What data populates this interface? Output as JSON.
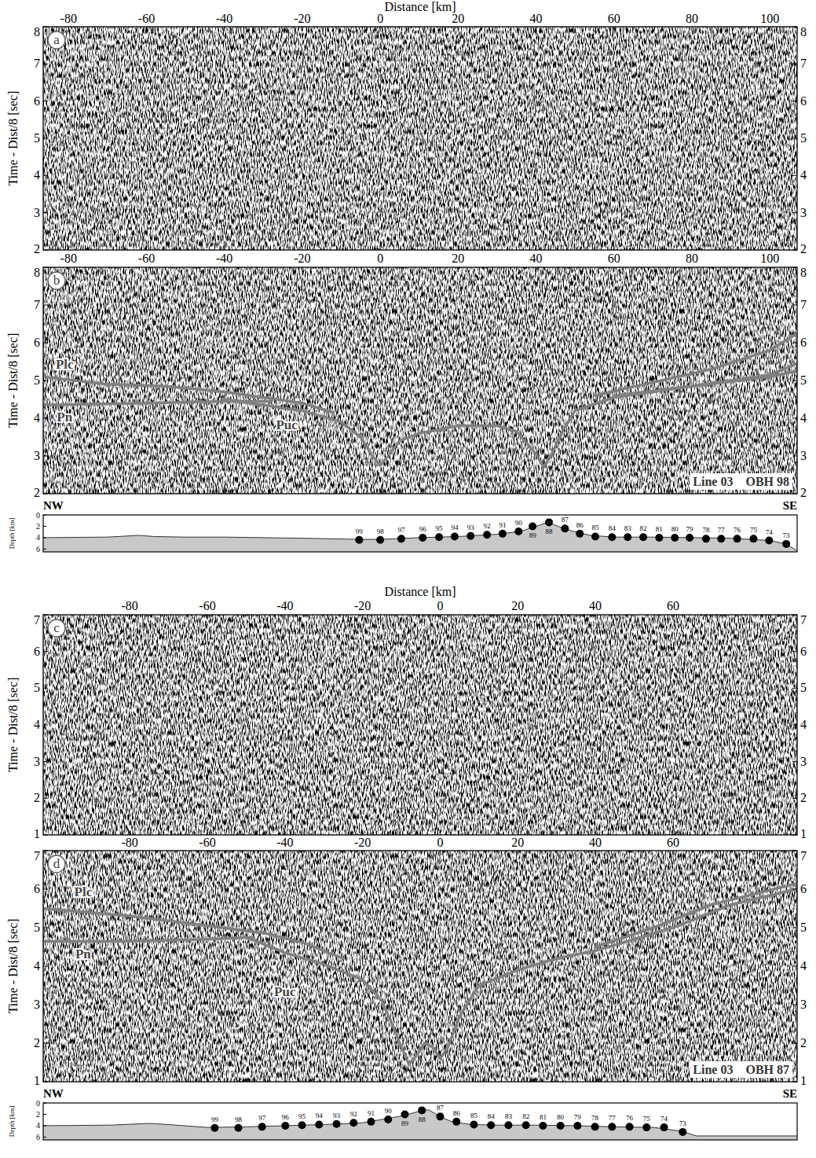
{
  "chart_data": [
    {
      "type": "seismic_section",
      "panel_label": "a",
      "xlabel": "Distance [km]",
      "ylabel": "Time - Dist/8 [sec]",
      "xlim": [
        -86.5,
        107
      ],
      "ylim": [
        2,
        8
      ],
      "xticks": [
        -80,
        -60,
        -40,
        -20,
        0,
        20,
        40,
        60,
        80,
        100
      ],
      "yticks": [
        2,
        3,
        4,
        5,
        6,
        7,
        8
      ]
    },
    {
      "type": "seismic_section",
      "panel_label": "b",
      "ylabel": "Time - Dist/8 [sec]",
      "station_label": "Line 03    OBH 98",
      "xlim": [
        -86.5,
        107
      ],
      "ylim": [
        2,
        8
      ],
      "xticks": [
        -80,
        -60,
        -40,
        -20,
        0,
        20,
        40,
        60,
        80,
        100
      ],
      "yticks": [
        2,
        3,
        4,
        5,
        6,
        7,
        8
      ],
      "series": [
        {
          "color": "#808080",
          "x": [
            -86.5,
            -70,
            -55,
            -40,
            -30,
            -20,
            -12,
            20,
            55,
            70,
            85,
            100,
            107
          ],
          "values": [
            5.1,
            4.9,
            4.85,
            4.7,
            4.55,
            4.4,
            4.15,
            null,
            4.6,
            4.95,
            5.3,
            5.8,
            6.25
          ]
        },
        {
          "color": "#808080",
          "x": [
            -86.5,
            -60,
            -40,
            -28,
            0,
            60,
            80,
            100,
            107
          ],
          "values": [
            4.35,
            4.4,
            4.45,
            4.45,
            null,
            4.6,
            4.85,
            5.15,
            5.45
          ]
        },
        {
          "color": "#808080",
          "x": [
            -40,
            -30,
            -20,
            -10,
            -5,
            -2,
            0,
            2,
            5,
            10,
            20,
            30,
            35,
            40,
            42,
            44,
            47,
            50,
            60,
            80,
            100,
            107
          ],
          "values": [
            4.5,
            4.35,
            4.2,
            3.9,
            3.5,
            3.0,
            2.75,
            3.0,
            3.4,
            3.6,
            3.8,
            3.8,
            3.65,
            3.05,
            2.7,
            3.05,
            3.7,
            4.2,
            4.55,
            4.85,
            5.1,
            5.25
          ]
        }
      ],
      "annotations": [
        {
          "text": "Plc",
          "x": -81,
          "y": 5.4
        },
        {
          "text": "Pn",
          "x": -81,
          "y": 4.0
        },
        {
          "text": "Puc",
          "x": -24,
          "y": 3.78
        }
      ]
    },
    {
      "type": "profile",
      "ylabel": "Depth [km]",
      "left_label": "NW",
      "right_label": "SE",
      "xlim": [
        -86.5,
        107
      ],
      "ylim": [
        0,
        6.5
      ],
      "yticks": [
        0,
        2,
        4,
        6
      ],
      "tick_labels": "y",
      "series": [
        {
          "type": "area",
          "color": "#c8c8c8",
          "x": [
            -86.5,
            -70,
            -62,
            -58,
            -50,
            -40,
            -20,
            -5,
            0,
            10,
            20,
            30,
            36,
            40,
            43,
            46,
            50,
            54,
            60,
            70,
            80,
            90,
            100,
            104,
            107
          ],
          "values": [
            4.0,
            3.9,
            3.6,
            3.8,
            3.9,
            3.9,
            4.1,
            4.3,
            4.3,
            4.0,
            3.8,
            3.4,
            2.9,
            2.0,
            1.3,
            2.1,
            3.0,
            3.6,
            3.9,
            3.9,
            4.0,
            4.1,
            4.5,
            5.1,
            6.3
          ]
        },
        {
          "type": "scatter",
          "marker": "circle",
          "color": "#000000",
          "labels": [
            "99",
            "98",
            "97",
            "96",
            "95",
            "94",
            "93",
            "92",
            "91",
            "90",
            "89",
            "88",
            "87",
            "86",
            "85",
            "84",
            "83",
            "82",
            "81",
            "80",
            "79",
            "78",
            "77",
            "76",
            "75",
            "74",
            "73"
          ],
          "x": [
            -5.4,
            0,
            5.4,
            10.9,
            15.1,
            19.1,
            23.2,
            27.4,
            31.4,
            35.5,
            39.1,
            43.3,
            47.4,
            51.2,
            55.2,
            59.5,
            63.5,
            67.5,
            71.6,
            75.6,
            79.4,
            83.6,
            87.5,
            91.6,
            95.8,
            99.8,
            104.2
          ],
          "values": [
            4.4,
            4.4,
            4.2,
            4.0,
            3.9,
            3.8,
            3.7,
            3.5,
            3.3,
            2.9,
            2.0,
            1.3,
            2.4,
            3.3,
            3.8,
            3.9,
            3.9,
            3.9,
            4.0,
            4.0,
            4.0,
            4.2,
            4.2,
            4.2,
            4.2,
            4.5,
            5.1
          ]
        }
      ]
    },
    {
      "type": "seismic_section",
      "panel_label": "c",
      "xlabel": "Distance [km]",
      "ylabel": "Time - Dist/8 [sec]",
      "xlim": [
        -102.3,
        92
      ],
      "ylim": [
        1,
        7
      ],
      "xticks": [
        -80,
        -60,
        -40,
        -20,
        0,
        20,
        40,
        60
      ],
      "yticks": [
        1,
        2,
        3,
        4,
        5,
        6,
        7
      ]
    },
    {
      "type": "seismic_section",
      "panel_label": "d",
      "ylabel": "Time - Dist/8 [sec]",
      "station_label": "Line 03    OBH 87",
      "xlim": [
        -102.3,
        92
      ],
      "ylim": [
        1,
        7
      ],
      "xticks": [
        -80,
        -60,
        -40,
        -20,
        0,
        20,
        40,
        60
      ],
      "yticks": [
        1,
        2,
        3,
        4,
        5,
        6,
        7
      ],
      "series": [
        {
          "color": "#808080",
          "x": [
            -102.3,
            -80,
            -60,
            -45,
            -35,
            -25,
            0,
            40,
            55,
            70,
            92
          ],
          "values": [
            5.5,
            5.3,
            5.05,
            4.85,
            4.6,
            4.2,
            null,
            4.5,
            5.0,
            5.6,
            6.15
          ]
        },
        {
          "color": "#808080",
          "x": [
            -102.3,
            -80,
            -60,
            -48,
            0,
            60,
            75,
            92
          ],
          "values": [
            4.65,
            4.65,
            4.7,
            4.75,
            null,
            5.0,
            5.6,
            6.0
          ]
        },
        {
          "color": "#808080",
          "x": [
            -50,
            -40,
            -30,
            -20,
            -15,
            -12,
            -10,
            -8,
            -6,
            -4,
            -2,
            0,
            2,
            5,
            10,
            20,
            30,
            40,
            50,
            60
          ],
          "values": [
            4.75,
            4.35,
            4.05,
            3.65,
            3.1,
            2.4,
            1.9,
            1.45,
            1.7,
            2.0,
            1.9,
            1.6,
            1.9,
            2.7,
            3.5,
            3.9,
            4.2,
            4.4,
            4.7,
            5.0
          ]
        }
      ],
      "annotations": [
        {
          "text": "Plc",
          "x": -92,
          "y": 5.9
        },
        {
          "text": "Pn",
          "x": -92,
          "y": 4.28
        },
        {
          "text": "Puc",
          "x": -40,
          "y": 3.3
        }
      ]
    },
    {
      "type": "profile",
      "ylabel": "Depth [km]",
      "left_label": "NW",
      "right_label": "SE",
      "xlim": [
        -102.3,
        92
      ],
      "ylim": [
        0,
        6.5
      ],
      "yticks": [
        0,
        2,
        4,
        6
      ],
      "tick_labels": "y",
      "series": [
        {
          "type": "area",
          "color": "#c8c8c8",
          "x": [
            -102.3,
            -85,
            -75,
            -70,
            -60,
            -50,
            -40,
            -30,
            -20,
            -10,
            -5,
            -3,
            0,
            3,
            8,
            15,
            25,
            35,
            45,
            55,
            62.5,
            66,
            70,
            92
          ],
          "values": [
            4.0,
            3.9,
            3.6,
            3.8,
            4.3,
            4.2,
            4.0,
            3.8,
            3.5,
            2.3,
            1.4,
            1.2,
            2.4,
            3.3,
            3.8,
            3.9,
            3.9,
            4.0,
            4.2,
            4.3,
            5.0,
            5.8,
            5.8,
            5.8
          ]
        },
        {
          "type": "scatter",
          "marker": "circle",
          "color": "#000000",
          "labels": [
            "99",
            "98",
            "97",
            "96",
            "95",
            "94",
            "93",
            "92",
            "91",
            "90",
            "89",
            "88",
            "87",
            "86",
            "85",
            "84",
            "83",
            "82",
            "81",
            "80",
            "79",
            "78",
            "77",
            "76",
            "75",
            "74",
            "73"
          ],
          "x": [
            -58.1,
            -52.0,
            -45.9,
            -39.9,
            -35.6,
            -31.2,
            -26.7,
            -22.3,
            -17.8,
            -13.4,
            -9.1,
            -4.7,
            0,
            4.2,
            8.7,
            13.1,
            17.6,
            22.1,
            26.5,
            31.0,
            35.4,
            39.9,
            44.3,
            48.8,
            53.2,
            57.7,
            62.5
          ],
          "values": [
            4.4,
            4.4,
            4.2,
            4.0,
            3.9,
            3.8,
            3.7,
            3.5,
            3.3,
            2.9,
            2.0,
            1.3,
            2.4,
            3.3,
            3.8,
            3.9,
            3.9,
            3.9,
            4.0,
            4.0,
            4.0,
            4.2,
            4.2,
            4.2,
            4.3,
            4.3,
            5.1
          ]
        }
      ]
    }
  ]
}
